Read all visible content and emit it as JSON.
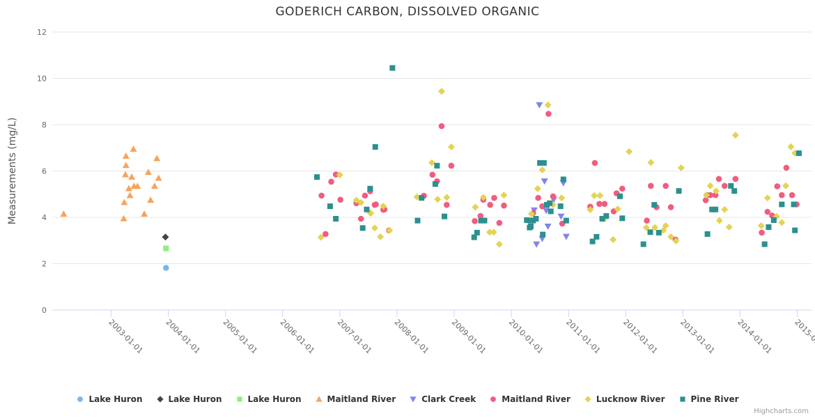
{
  "title": "GODERICH CARBON, DISSOLVED ORGANIC",
  "credit": "Highcharts.com",
  "chart_data": {
    "type": "scatter",
    "title": "GODERICH CARBON, DISSOLVED ORGANIC",
    "xlabel": "",
    "ylabel": "Measurements (mg/L)",
    "ylim": [
      0,
      12
    ],
    "yticks": [
      0,
      2,
      4,
      6,
      8,
      10,
      12
    ],
    "xlim": [
      2001.97,
      2015.25
    ],
    "xticks": [
      2003,
      2004,
      2005,
      2006,
      2007,
      2008,
      2009,
      2010,
      2011,
      2012,
      2013,
      2014,
      2015
    ],
    "xtick_label_suffix": "-01-01",
    "grid": "horizontal",
    "legend_position": "bottom",
    "series": [
      {
        "name": "Lake Huron",
        "symbol": "circle",
        "color": "#7cb5ec",
        "data": [
          [
            2003.96,
            1.82
          ]
        ]
      },
      {
        "name": "Lake Huron",
        "symbol": "diamond",
        "color": "#434348",
        "data": [
          [
            2003.95,
            3.15
          ]
        ]
      },
      {
        "name": "Lake Huron",
        "symbol": "square",
        "color": "#90ed7d",
        "data": [
          [
            2003.96,
            2.66
          ]
        ]
      },
      {
        "name": "Maitland River",
        "symbol": "triangle",
        "color": "#f7a35c",
        "data": [
          [
            2002.17,
            4.15
          ],
          [
            2003.22,
            3.95
          ],
          [
            2003.23,
            4.65
          ],
          [
            2003.25,
            5.85
          ],
          [
            2003.26,
            6.65
          ],
          [
            2003.26,
            6.25
          ],
          [
            2003.31,
            5.25
          ],
          [
            2003.33,
            4.95
          ],
          [
            2003.36,
            5.75
          ],
          [
            2003.39,
            6.95
          ],
          [
            2003.4,
            5.35
          ],
          [
            2003.46,
            5.35
          ],
          [
            2003.58,
            4.15
          ],
          [
            2003.65,
            5.95
          ],
          [
            2003.69,
            4.75
          ],
          [
            2003.76,
            5.35
          ],
          [
            2003.8,
            6.55
          ],
          [
            2003.83,
            5.7
          ]
        ]
      },
      {
        "name": "Clark Creek",
        "symbol": "triangle-down",
        "color": "#8085e9",
        "data": [
          [
            2010.4,
            4.31
          ],
          [
            2010.44,
            2.84
          ],
          [
            2010.49,
            8.85
          ],
          [
            2010.54,
            3.08
          ],
          [
            2010.58,
            5.56
          ],
          [
            2010.61,
            4.29
          ],
          [
            2010.64,
            3.61
          ],
          [
            2010.74,
            4.76
          ],
          [
            2010.87,
            4.04
          ],
          [
            2010.91,
            5.48
          ],
          [
            2010.96,
            3.17
          ]
        ]
      },
      {
        "name": "Maitland River",
        "symbol": "circle",
        "color": "#f15c80",
        "data": [
          [
            2006.68,
            4.94
          ],
          [
            2006.75,
            3.28
          ],
          [
            2006.85,
            5.54
          ],
          [
            2006.93,
            5.85
          ],
          [
            2007.01,
            4.76
          ],
          [
            2007.29,
            4.61
          ],
          [
            2007.37,
            3.94
          ],
          [
            2007.44,
            4.94
          ],
          [
            2007.53,
            5.13
          ],
          [
            2007.61,
            4.54
          ],
          [
            2007.63,
            4.56
          ],
          [
            2007.76,
            4.33
          ],
          [
            2007.78,
            4.34
          ],
          [
            2007.86,
            3.44
          ],
          [
            2008.47,
            4.93
          ],
          [
            2008.62,
            5.84
          ],
          [
            2008.7,
            5.56
          ],
          [
            2008.78,
            7.94
          ],
          [
            2008.87,
            4.54
          ],
          [
            2008.95,
            6.23
          ],
          [
            2009.36,
            3.84
          ],
          [
            2009.46,
            4.06
          ],
          [
            2009.51,
            4.76
          ],
          [
            2009.63,
            4.54
          ],
          [
            2009.7,
            4.84
          ],
          [
            2009.79,
            3.76
          ],
          [
            2009.87,
            4.51
          ],
          [
            2010.38,
            4.19
          ],
          [
            2010.47,
            4.84
          ],
          [
            2010.54,
            4.48
          ],
          [
            2010.65,
            8.47
          ],
          [
            2010.73,
            4.91
          ],
          [
            2010.89,
            3.73
          ],
          [
            2011.38,
            4.46
          ],
          [
            2011.46,
            6.35
          ],
          [
            2011.54,
            4.58
          ],
          [
            2011.63,
            4.58
          ],
          [
            2011.79,
            4.26
          ],
          [
            2011.84,
            5.04
          ],
          [
            2011.94,
            5.24
          ],
          [
            2012.37,
            3.86
          ],
          [
            2012.44,
            5.36
          ],
          [
            2012.54,
            4.44
          ],
          [
            2012.7,
            5.36
          ],
          [
            2012.79,
            4.44
          ],
          [
            2012.87,
            3.04
          ],
          [
            2013.4,
            4.74
          ],
          [
            2013.42,
            4.96
          ],
          [
            2013.48,
            4.96
          ],
          [
            2013.57,
            4.96
          ],
          [
            2013.63,
            5.66
          ],
          [
            2013.73,
            5.36
          ],
          [
            2013.92,
            5.66
          ],
          [
            2014.38,
            3.34
          ],
          [
            2014.48,
            4.24
          ],
          [
            2014.56,
            4.08
          ],
          [
            2014.65,
            5.34
          ],
          [
            2014.73,
            4.96
          ],
          [
            2014.81,
            6.14
          ],
          [
            2014.91,
            4.96
          ],
          [
            2014.99,
            4.56
          ]
        ]
      },
      {
        "name": "Lucknow River",
        "symbol": "diamond",
        "color": "#e4d354",
        "data": [
          [
            2006.67,
            3.14
          ],
          [
            2007.0,
            5.83
          ],
          [
            2007.29,
            4.74
          ],
          [
            2007.37,
            4.64
          ],
          [
            2007.53,
            4.19
          ],
          [
            2007.54,
            4.18
          ],
          [
            2007.61,
            3.54
          ],
          [
            2007.71,
            3.16
          ],
          [
            2007.76,
            4.48
          ],
          [
            2007.87,
            3.44
          ],
          [
            2008.35,
            4.88
          ],
          [
            2008.61,
            6.36
          ],
          [
            2008.71,
            4.78
          ],
          [
            2008.78,
            9.44
          ],
          [
            2008.87,
            4.86
          ],
          [
            2008.95,
            7.04
          ],
          [
            2009.37,
            4.44
          ],
          [
            2009.51,
            4.86
          ],
          [
            2009.62,
            3.36
          ],
          [
            2009.69,
            3.36
          ],
          [
            2009.79,
            2.84
          ],
          [
            2009.87,
            4.96
          ],
          [
            2010.35,
            4.15
          ],
          [
            2010.46,
            5.24
          ],
          [
            2010.54,
            6.05
          ],
          [
            2010.64,
            8.85
          ],
          [
            2010.73,
            4.54
          ],
          [
            2010.88,
            4.84
          ],
          [
            2011.38,
            4.33
          ],
          [
            2011.45,
            4.94
          ],
          [
            2011.55,
            4.94
          ],
          [
            2011.63,
            3.94
          ],
          [
            2011.78,
            3.04
          ],
          [
            2011.86,
            4.36
          ],
          [
            2012.06,
            6.84
          ],
          [
            2012.36,
            3.56
          ],
          [
            2012.44,
            6.37
          ],
          [
            2012.51,
            3.56
          ],
          [
            2012.66,
            3.44
          ],
          [
            2012.7,
            3.64
          ],
          [
            2012.79,
            3.16
          ],
          [
            2012.88,
            2.98
          ],
          [
            2012.97,
            6.14
          ],
          [
            2013.41,
            4.96
          ],
          [
            2013.48,
            5.36
          ],
          [
            2013.58,
            5.14
          ],
          [
            2013.64,
            3.86
          ],
          [
            2013.73,
            4.34
          ],
          [
            2013.81,
            3.58
          ],
          [
            2013.92,
            7.55
          ],
          [
            2014.37,
            3.64
          ],
          [
            2014.48,
            4.84
          ],
          [
            2014.64,
            4.04
          ],
          [
            2014.73,
            3.78
          ],
          [
            2014.8,
            5.36
          ],
          [
            2014.89,
            7.05
          ],
          [
            2014.96,
            6.77
          ]
        ]
      },
      {
        "name": "Pine River",
        "symbol": "square",
        "color": "#2b908f",
        "data": [
          [
            2006.6,
            5.74
          ],
          [
            2006.83,
            4.48
          ],
          [
            2006.93,
            3.94
          ],
          [
            2007.4,
            3.54
          ],
          [
            2007.47,
            4.34
          ],
          [
            2007.53,
            5.24
          ],
          [
            2007.62,
            7.04
          ],
          [
            2007.92,
            10.45
          ],
          [
            2008.36,
            3.86
          ],
          [
            2008.43,
            4.84
          ],
          [
            2008.67,
            5.44
          ],
          [
            2008.7,
            6.23
          ],
          [
            2008.83,
            4.04
          ],
          [
            2009.35,
            3.14
          ],
          [
            2009.4,
            3.34
          ],
          [
            2009.47,
            3.86
          ],
          [
            2009.53,
            3.86
          ],
          [
            2010.27,
            3.88
          ],
          [
            2010.32,
            3.56
          ],
          [
            2010.33,
            3.86
          ],
          [
            2010.34,
            3.61
          ],
          [
            2010.38,
            3.86
          ],
          [
            2010.43,
            3.94
          ],
          [
            2010.5,
            6.35
          ],
          [
            2010.55,
            3.26
          ],
          [
            2010.57,
            6.35
          ],
          [
            2010.62,
            4.54
          ],
          [
            2010.67,
            4.61
          ],
          [
            2010.69,
            4.26
          ],
          [
            2010.86,
            4.48
          ],
          [
            2010.91,
            5.64
          ],
          [
            2010.96,
            3.86
          ],
          [
            2011.42,
            2.96
          ],
          [
            2011.49,
            3.16
          ],
          [
            2011.59,
            3.94
          ],
          [
            2011.66,
            4.06
          ],
          [
            2011.9,
            4.91
          ],
          [
            2011.94,
            3.96
          ],
          [
            2012.31,
            2.84
          ],
          [
            2012.43,
            3.36
          ],
          [
            2012.5,
            4.54
          ],
          [
            2012.58,
            3.34
          ],
          [
            2012.93,
            5.14
          ],
          [
            2013.43,
            3.28
          ],
          [
            2013.51,
            4.34
          ],
          [
            2013.57,
            4.34
          ],
          [
            2013.84,
            5.36
          ],
          [
            2013.9,
            5.14
          ],
          [
            2014.43,
            2.84
          ],
          [
            2014.5,
            3.58
          ],
          [
            2014.59,
            3.88
          ],
          [
            2014.73,
            4.56
          ],
          [
            2014.94,
            4.56
          ],
          [
            2014.96,
            3.44
          ],
          [
            2015.03,
            6.77
          ]
        ]
      }
    ]
  }
}
